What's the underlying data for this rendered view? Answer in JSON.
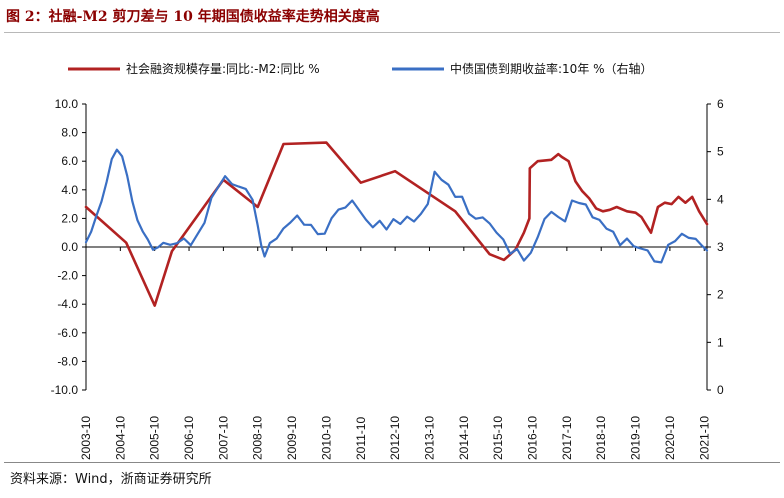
{
  "header": {
    "title": "图 2：社融-M2 剪刀差与 10 年期国债收益率走势相关度高"
  },
  "footer": {
    "source": "资料来源：Wind，浙商证券研究所"
  },
  "colors": {
    "red": "#b22222",
    "blue": "#3a6fc4",
    "title": "#8b0000"
  },
  "chart_data": {
    "type": "line",
    "title": "图 2：社融-M2 剪刀差与 10 年期国债收益率走势相关度高",
    "legend_position": "top",
    "grid": false,
    "y_left": {
      "ylim": [
        -10,
        10
      ],
      "ticks": [
        "10.0",
        "8.0",
        "6.0",
        "4.0",
        "2.0",
        "0.0",
        "-2.0",
        "-4.0",
        "-6.0",
        "-8.0",
        "-10.0"
      ]
    },
    "y_right": {
      "ylim": [
        0,
        6
      ],
      "ticks": [
        "6",
        "5",
        "4",
        "3",
        "2",
        "1",
        "0"
      ]
    },
    "x_ticks": [
      "2003-10",
      "2004-10",
      "2005-10",
      "2006-10",
      "2007-10",
      "2008-10",
      "2009-10",
      "2010-10",
      "2011-10",
      "2012-10",
      "2013-10",
      "2014-10",
      "2015-10",
      "2016-10",
      "2017-10",
      "2018-10",
      "2019-10",
      "2020-10",
      "2021-10"
    ],
    "series": [
      {
        "name": "社会融资规模存量:同比:-M2:同比 %",
        "axis": "left",
        "color": "#b22222",
        "x": [
          2003.75,
          2004.92,
          2005.75,
          2006.25,
          2007.75,
          2008.75,
          2009.5,
          2010.75,
          2011.75,
          2012.75,
          2014.5,
          2015.5,
          2015.92,
          2016.25,
          2016.5,
          2016.66,
          2016.67,
          2016.9,
          2017.3,
          2017.5,
          2017.6,
          2017.8,
          2018.0,
          2018.2,
          2018.4,
          2018.6,
          2018.8,
          2019.0,
          2019.2,
          2019.5,
          2019.75,
          2019.92,
          2020.2,
          2020.4,
          2020.6,
          2020.8,
          2021.0,
          2021.2,
          2021.4,
          2021.6,
          2021.83
        ],
        "values": [
          2.8,
          0.3,
          -4.1,
          -0.3,
          4.7,
          2.8,
          7.2,
          7.3,
          4.5,
          5.3,
          2.5,
          -0.5,
          -0.9,
          -0.2,
          1.0,
          2.0,
          5.5,
          6.0,
          6.1,
          6.5,
          6.3,
          6.0,
          4.6,
          3.9,
          3.4,
          2.7,
          2.5,
          2.6,
          2.8,
          2.5,
          2.4,
          2.1,
          1.0,
          2.8,
          3.1,
          3.0,
          3.5,
          3.1,
          3.5,
          2.5,
          1.6
        ]
      },
      {
        "name": "中债国债到期收益率:10年 %（右轴）",
        "axis": "right",
        "color": "#3a6fc4",
        "x": [
          2003.75,
          2003.9,
          2004.05,
          2004.2,
          2004.35,
          2004.5,
          2004.65,
          2004.8,
          2004.95,
          2005.1,
          2005.25,
          2005.4,
          2005.55,
          2005.7,
          2005.85,
          2006.0,
          2006.2,
          2006.4,
          2006.6,
          2006.8,
          2007.0,
          2007.2,
          2007.4,
          2007.6,
          2007.8,
          2008.0,
          2008.2,
          2008.4,
          2008.6,
          2008.75,
          2008.85,
          2008.95,
          2009.1,
          2009.3,
          2009.5,
          2009.7,
          2009.9,
          2010.1,
          2010.3,
          2010.5,
          2010.7,
          2010.9,
          2011.1,
          2011.3,
          2011.5,
          2011.7,
          2011.9,
          2012.1,
          2012.3,
          2012.5,
          2012.7,
          2012.9,
          2013.1,
          2013.3,
          2013.5,
          2013.7,
          2013.9,
          2014.1,
          2014.3,
          2014.5,
          2014.7,
          2014.9,
          2015.1,
          2015.3,
          2015.5,
          2015.7,
          2015.9,
          2016.1,
          2016.3,
          2016.5,
          2016.7,
          2016.9,
          2017.1,
          2017.3,
          2017.5,
          2017.7,
          2017.9,
          2018.1,
          2018.3,
          2018.5,
          2018.7,
          2018.9,
          2019.1,
          2019.3,
          2019.5,
          2019.7,
          2019.9,
          2020.1,
          2020.3,
          2020.5,
          2020.7,
          2020.9,
          2021.1,
          2021.3,
          2021.5,
          2021.7,
          2021.83
        ],
        "values": [
          3.1,
          3.3,
          3.6,
          3.9,
          4.3,
          4.8,
          5.0,
          4.9,
          4.5,
          4.0,
          3.6,
          3.4,
          3.2,
          3.0,
          3.0,
          3.1,
          3.0,
          3.05,
          3.1,
          3.0,
          3.2,
          3.5,
          4.0,
          4.3,
          4.5,
          4.4,
          4.3,
          4.3,
          4.0,
          3.5,
          3.0,
          2.8,
          3.0,
          3.15,
          3.3,
          3.5,
          3.6,
          3.5,
          3.45,
          3.35,
          3.3,
          3.7,
          3.8,
          3.9,
          3.95,
          3.8,
          3.5,
          3.4,
          3.45,
          3.35,
          3.5,
          3.5,
          3.6,
          3.6,
          3.7,
          4.0,
          4.6,
          4.5,
          4.3,
          4.1,
          4.0,
          3.7,
          3.5,
          3.6,
          3.4,
          3.3,
          3.1,
          2.9,
          2.95,
          2.8,
          2.9,
          3.3,
          3.6,
          3.8,
          3.6,
          3.55,
          3.9,
          3.9,
          3.8,
          3.6,
          3.5,
          3.4,
          3.3,
          3.1,
          3.2,
          3.1,
          3.0,
          3.0,
          2.7,
          2.7,
          3.0,
          3.1,
          3.2,
          3.15,
          3.1,
          3.0,
          2.9
        ]
      }
    ]
  }
}
